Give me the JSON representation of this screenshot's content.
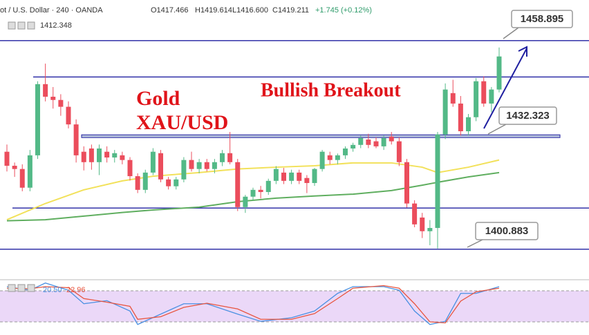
{
  "chart_data": {
    "type": "candlestick",
    "header": {
      "symbol": "ot / U.S. Dollar · 240 · OANDA",
      "open": "O1417.466",
      "high": "H1419.614",
      "low": "L1416.600",
      "close": "C1419.211",
      "change": "+1.745 (+0.12%)",
      "indicator_value": "1412.348"
    },
    "annotations": [
      "Gold",
      "XAU/USD",
      "Bullish Breakout"
    ],
    "ylim": [
      1392.4,
      1470.2
    ],
    "up_color": "#53b987",
    "down_color": "#eb4d5c",
    "ohlc": [
      [
        1428.0,
        1430.0,
        1422.5,
        1424.1
      ],
      [
        1424.1,
        1425.0,
        1421.0,
        1423.2
      ],
      [
        1423.2,
        1424.5,
        1417.0,
        1418.0
      ],
      [
        1418.0,
        1428.5,
        1417.0,
        1427.0
      ],
      [
        1427.0,
        1447.6,
        1426.0,
        1446.8
      ],
      [
        1446.8,
        1452.5,
        1442.0,
        1443.3
      ],
      [
        1443.3,
        1446.0,
        1440.0,
        1442.4
      ],
      [
        1442.4,
        1444.0,
        1438.0,
        1440.5
      ],
      [
        1440.5,
        1442.0,
        1434.5,
        1435.6
      ],
      [
        1435.6,
        1437.0,
        1425.0,
        1427.0
      ],
      [
        1428.0,
        1429.5,
        1422.8,
        1425.1
      ],
      [
        1428.9,
        1430.0,
        1423.0,
        1425.1
      ],
      [
        1425.1,
        1430.0,
        1421.5,
        1428.9
      ],
      [
        1428.0,
        1429.5,
        1425.0,
        1426.4
      ],
      [
        1426.4,
        1428.5,
        1425.0,
        1427.6
      ],
      [
        1427.0,
        1428.0,
        1424.5,
        1425.7
      ],
      [
        1425.7,
        1426.5,
        1420.0,
        1421.2
      ],
      [
        1421.2,
        1422.0,
        1416.5,
        1417.4
      ],
      [
        1417.4,
        1423.0,
        1416.5,
        1422.2
      ],
      [
        1422.2,
        1429.0,
        1421.5,
        1428.0
      ],
      [
        1427.6,
        1428.5,
        1419.5,
        1420.3
      ],
      [
        1420.3,
        1421.0,
        1417.5,
        1418.4
      ],
      [
        1418.4,
        1421.0,
        1417.5,
        1420.3
      ],
      [
        1420.3,
        1426.5,
        1419.5,
        1425.7
      ],
      [
        1425.7,
        1428.0,
        1422.5,
        1423.2
      ],
      [
        1423.2,
        1426.0,
        1422.0,
        1425.1
      ],
      [
        1425.1,
        1426.0,
        1422.5,
        1423.2
      ],
      [
        1423.2,
        1426.0,
        1422.0,
        1425.1
      ],
      [
        1425.1,
        1428.5,
        1424.0,
        1427.6
      ],
      [
        1427.6,
        1433.5,
        1424.5,
        1425.1
      ],
      [
        1425.1,
        1426.0,
        1411.5,
        1412.6
      ],
      [
        1412.6,
        1416.0,
        1411.0,
        1415.5
      ],
      [
        1415.5,
        1418.0,
        1414.5,
        1417.4
      ],
      [
        1417.4,
        1418.5,
        1415.0,
        1416.8
      ],
      [
        1416.8,
        1420.5,
        1416.0,
        1419.9
      ],
      [
        1419.9,
        1424.0,
        1419.0,
        1423.2
      ],
      [
        1422.2,
        1423.5,
        1419.0,
        1419.9
      ],
      [
        1419.9,
        1423.0,
        1419.0,
        1422.2
      ],
      [
        1422.2,
        1423.0,
        1419.0,
        1419.9
      ],
      [
        1420.7,
        1421.5,
        1416.5,
        1419.3
      ],
      [
        1419.3,
        1423.5,
        1418.5,
        1423.2
      ],
      [
        1423.2,
        1428.5,
        1422.5,
        1428.0
      ],
      [
        1427.0,
        1428.0,
        1424.5,
        1425.7
      ],
      [
        1425.7,
        1427.5,
        1424.5,
        1427.0
      ],
      [
        1427.0,
        1429.5,
        1426.0,
        1428.9
      ],
      [
        1428.9,
        1430.5,
        1428.0,
        1429.9
      ],
      [
        1429.9,
        1432.5,
        1429.0,
        1431.8
      ],
      [
        1431.4,
        1433.0,
        1429.0,
        1429.9
      ],
      [
        1430.9,
        1432.0,
        1429.0,
        1429.5
      ],
      [
        1429.5,
        1432.5,
        1428.5,
        1431.8
      ],
      [
        1432.2,
        1433.5,
        1430.0,
        1430.9
      ],
      [
        1430.9,
        1432.0,
        1424.0,
        1425.1
      ],
      [
        1425.1,
        1426.0,
        1412.5,
        1413.6
      ],
      [
        1413.6,
        1414.5,
        1407.0,
        1407.8
      ],
      [
        1409.7,
        1411.0,
        1404.0,
        1405.9
      ],
      [
        1405.9,
        1409.0,
        1402.0,
        1406.8
      ],
      [
        1406.8,
        1433.5,
        1401.1,
        1432.8
      ],
      [
        1432.8,
        1447.0,
        1431.5,
        1445.3
      ],
      [
        1444.3,
        1448.0,
        1440.5,
        1441.4
      ],
      [
        1441.4,
        1443.5,
        1432.5,
        1433.7
      ],
      [
        1433.7,
        1438.5,
        1432.5,
        1437.6
      ],
      [
        1437.6,
        1448.5,
        1436.5,
        1447.6
      ],
      [
        1447.6,
        1449.0,
        1440.5,
        1441.4
      ],
      [
        1441.4,
        1446.0,
        1439.0,
        1445.3
      ],
      [
        1445.3,
        1457.0,
        1444.5,
        1454.5
      ]
    ],
    "overlays": [
      {
        "color": "#f2e15a",
        "x": [
          0,
          5,
          10,
          15,
          19,
          25,
          30,
          35,
          40,
          45,
          50,
          54,
          56,
          60,
          64
        ],
        "values": [
          1409.1,
          1413.6,
          1417.4,
          1419.9,
          1421.2,
          1422.2,
          1423.2,
          1423.7,
          1424.1,
          1424.9,
          1424.9,
          1423.7,
          1422.2,
          1423.7,
          1425.7
        ]
      },
      {
        "color": "#5fae5f",
        "x": [
          0,
          5,
          10,
          15,
          19,
          25,
          30,
          35,
          40,
          45,
          50,
          54,
          56,
          60,
          64
        ],
        "values": [
          1408.8,
          1409.1,
          1410.1,
          1411.1,
          1411.8,
          1412.6,
          1414.1,
          1415.1,
          1415.7,
          1416.2,
          1417.2,
          1418.7,
          1419.5,
          1421.0,
          1422.2
        ]
      }
    ],
    "levels": [
      1458.895,
      1448.8,
      1432.323,
      1412.348,
      1400.883
    ],
    "level_color": "#1f1fa0",
    "level_labels": [
      {
        "value": 1458.895,
        "label": "1458.895"
      },
      {
        "value": 1432.323,
        "label": "1432.323"
      },
      {
        "value": 1400.883,
        "label": "1400.883"
      }
    ],
    "stochastic": {
      "ylim": [
        0,
        100
      ],
      "band": [
        80,
        20
      ],
      "band_color": "#e3c8f5",
      "value_labels": [
        "20.50",
        "22.96"
      ],
      "x": [
        0,
        3,
        5,
        8,
        10,
        13,
        16,
        17,
        20,
        23,
        26,
        30,
        33,
        37,
        40,
        43,
        45,
        49,
        51,
        53,
        55,
        57,
        59,
        61,
        64
      ],
      "series": [
        {
          "color": "#4a90e2",
          "values": [
            88,
            81,
            95,
            81,
            55,
            61,
            41,
            15,
            35,
            55,
            55,
            35,
            21,
            28,
            41,
            75,
            88,
            88,
            81,
            41,
            15,
            21,
            75,
            75,
            88
          ]
        },
        {
          "color": "#e8553f",
          "values": [
            85,
            84,
            88,
            86,
            65,
            58,
            50,
            25,
            30,
            48,
            56,
            45,
            25,
            25,
            36,
            65,
            85,
            90,
            85,
            55,
            20,
            18,
            60,
            78,
            85
          ]
        }
      ]
    }
  }
}
